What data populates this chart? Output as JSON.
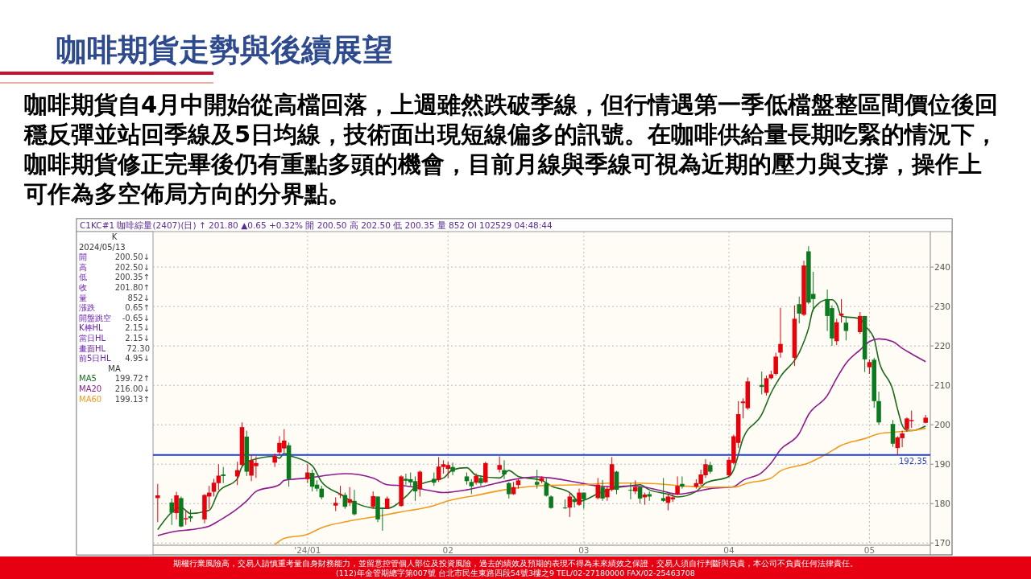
{
  "chart_data": {
    "type": "candlestick",
    "title": "咖啡期貨走勢與後續展望",
    "subtitle": "咖啡期貨自4月中開始從高檔回落，上週雖然跌破季線，但行情遇第一季低檔盤整區間價位後回穩反彈並站回季線及5日均線，技術面出現短線偏多的訊號。在咖啡供給量長期吃緊的情況下，咖啡期貨修正完畢後仍有重點多頭的機會，目前月線與季線可視為近期的壓力與支撐，操作上可作為多空佈局方向的分界點。",
    "annotations": [
      "C1KC#1   咖啡綜量(2407)(日)   ↑ 201.80   ▲0.65   +0.32%   開 200.50   高 202.50   低 200.35   量 852   OI 102529   04:48:44",
      "K",
      "2024/05/13",
      "開 200.50↓",
      "高 202.50↓",
      "低 200.35↑",
      "收 201.80↑",
      "量 852↓",
      "漲跌 0.65↑",
      "開盤跳空 -0.65↓",
      "K棒HL 2.15↓",
      "當日HL 2.15↓",
      "畫面HL 72.30",
      "前5日HL 4.95↓",
      "MA",
      "199.72↑",
      "216.00↓",
      "199.13↑",
      "期權行業風險高，交易人請慎重考量自身財務能力，並留意控管個人部位及投資風險，過去的績效及預期的表現不得為未來績效之保證，交易人須自行判斷與負責，本公司不負責任何法律責任。",
      "(112)年金管期總字第007號 台北市民生東路四段54號3樓之9 TEL/02-27180000 FAX/02-25463708"
    ],
    "x": [
      "2023-12-01",
      "2023-12-04",
      "2023-12-05",
      "2023-12-06",
      "2023-12-07",
      "2023-12-08",
      "2023-12-11",
      "2023-12-12",
      "2023-12-13",
      "2023-12-14",
      "2023-12-15",
      "2023-12-18",
      "2023-12-19",
      "2023-12-20",
      "2023-12-21",
      "2023-12-22",
      "2023-12-26",
      "2023-12-27",
      "2023-12-28",
      "2023-12-29",
      "2024-01-02",
      "2024-01-03",
      "2024-01-04",
      "2024-01-05",
      "2024-01-08",
      "2024-01-09",
      "2024-01-10",
      "2024-01-11",
      "2024-01-12",
      "2024-01-16",
      "2024-01-17",
      "2024-01-18",
      "2024-01-19",
      "2024-01-22",
      "2024-01-23",
      "2024-01-24",
      "2024-01-25",
      "2024-01-26",
      "2024-01-29",
      "2024-01-30",
      "2024-01-31",
      "2024-02-01",
      "2024-02-02",
      "2024-02-05",
      "2024-02-06",
      "2024-02-07",
      "2024-02-08",
      "2024-02-09",
      "2024-02-12",
      "2024-02-13",
      "2024-02-14",
      "2024-02-15",
      "2024-02-16",
      "2024-02-20",
      "2024-02-21",
      "2024-02-22",
      "2024-02-23",
      "2024-02-26",
      "2024-02-27",
      "2024-02-28",
      "2024-02-29",
      "2024-03-01",
      "2024-03-04",
      "2024-03-05",
      "2024-03-06",
      "2024-03-07",
      "2024-03-08",
      "2024-03-11",
      "2024-03-12",
      "2024-03-13",
      "2024-03-14",
      "2024-03-15",
      "2024-03-18",
      "2024-03-19",
      "2024-03-20",
      "2024-03-21",
      "2024-03-22",
      "2024-03-25",
      "2024-03-26",
      "2024-03-27",
      "2024-03-28",
      "2024-04-01",
      "2024-04-02",
      "2024-04-03",
      "2024-04-04",
      "2024-04-05",
      "2024-04-08",
      "2024-04-09",
      "2024-04-10",
      "2024-04-11",
      "2024-04-12",
      "2024-04-15",
      "2024-04-16",
      "2024-04-17",
      "2024-04-18",
      "2024-04-19",
      "2024-04-22",
      "2024-04-23",
      "2024-04-24",
      "2024-04-25",
      "2024-04-26",
      "2024-04-29",
      "2024-04-30",
      "2024-05-01",
      "2024-05-02",
      "2024-05-03",
      "2024-05-06",
      "2024-05-07",
      "2024-05-08",
      "2024-05-09",
      "2024-05-10",
      "2024-05-13"
    ],
    "ohlc": [
      [
        181.4,
        185.0,
        175.3,
        182.1
      ],
      [
        180.3,
        181.3,
        174.6,
        177.7
      ],
      [
        177.6,
        183.0,
        176.0,
        182.1
      ],
      [
        181.4,
        181.8,
        174.0,
        174.2
      ],
      [
        176.0,
        178.1,
        174.6,
        176.3
      ],
      [
        176.8,
        178.5,
        175.4,
        176.3
      ],
      [
        176.0,
        182.4,
        175.0,
        182.2
      ],
      [
        181.8,
        184.5,
        178.7,
        182.8
      ],
      [
        183.0,
        186.3,
        181.8,
        185.3
      ],
      [
        185.2,
        190.0,
        183.5,
        187.1
      ],
      [
        187.4,
        189.3,
        185.2,
        187.0
      ],
      [
        186.9,
        190.6,
        184.7,
        188.5
      ],
      [
        189.8,
        200.6,
        189.6,
        199.4
      ],
      [
        197.0,
        198.5,
        187.0,
        188.1
      ],
      [
        187.1,
        192.4,
        185.7,
        191.0
      ],
      [
        189.5,
        192.0,
        186.5,
        190.3
      ],
      [
        190.4,
        192.7,
        189.3,
        192.0
      ],
      [
        193.0,
        197.1,
        192.4,
        195.4
      ],
      [
        194.0,
        198.9,
        193.0,
        196.0
      ],
      [
        194.8,
        195.5,
        184.3,
        186.2
      ],
      [
        186.2,
        190.0,
        185.2,
        187.9
      ],
      [
        187.8,
        188.6,
        183.1,
        184.3
      ],
      [
        184.8,
        185.9,
        183.1,
        183.8
      ],
      [
        183.8,
        184.5,
        181.1,
        181.6
      ],
      [
        179.5,
        181.6,
        178.1,
        180.2
      ],
      [
        182.2,
        184.5,
        181.4,
        182.4
      ],
      [
        182.2,
        182.8,
        178.7,
        179.2
      ],
      [
        180.2,
        184.2,
        179.4,
        181.1
      ],
      [
        180.7,
        183.5,
        177.0,
        177.3
      ],
      [
        179.2,
        183.1,
        178.7,
        181.9
      ],
      [
        181.8,
        181.8,
        175.3,
        176.0
      ],
      [
        178.9,
        179.0,
        173.1,
        178.7
      ],
      [
        178.7,
        181.8,
        178.7,
        181.3
      ],
      [
        179.4,
        187.2,
        179.2,
        186.9
      ],
      [
        186.3,
        187.6,
        184.8,
        185.8
      ],
      [
        186.2,
        187.9,
        184.5,
        185.4
      ],
      [
        185.7,
        186.9,
        180.7,
        183.1
      ],
      [
        183.6,
        188.4,
        181.8,
        188.1
      ],
      [
        186.3,
        187.9,
        184.5,
        185.3
      ],
      [
        186.0,
        191.8,
        185.5,
        189.4
      ],
      [
        189.3,
        191.0,
        187.6,
        190.0
      ],
      [
        188.8,
        190.6,
        186.5,
        189.8
      ],
      [
        189.3,
        190.4,
        187.2,
        188.1
      ],
      [
        186.9,
        187.9,
        184.8,
        185.7
      ],
      [
        185.5,
        186.2,
        182.4,
        184.4
      ],
      [
        185.3,
        187.7,
        184.8,
        187.0
      ],
      [
        186.5,
        187.2,
        184.5,
        185.2
      ],
      [
        185.4,
        190.6,
        185.2,
        190.3
      ],
      [
        188.6,
        192.0,
        187.9,
        189.8
      ],
      [
        188.5,
        191.0,
        186.2,
        187.4
      ],
      [
        185.2,
        185.5,
        181.3,
        182.4
      ],
      [
        182.4,
        185.5,
        182.2,
        184.2
      ],
      [
        184.7,
        186.3,
        183.8,
        185.9
      ],
      [
        185.5,
        188.6,
        183.8,
        184.8
      ],
      [
        185.7,
        186.9,
        185.2,
        186.5
      ],
      [
        185.2,
        186.5,
        181.8,
        182.0
      ],
      [
        181.8,
        182.1,
        178.7,
        178.9
      ],
      [
        179.0,
        181.1,
        178.7,
        178.8
      ],
      [
        179.0,
        182.8,
        176.6,
        181.8
      ],
      [
        181.1,
        181.8,
        179.0,
        180.4
      ],
      [
        179.7,
        183.8,
        179.4,
        182.8
      ],
      [
        182.8,
        182.8,
        178.7,
        181.1
      ],
      [
        181.4,
        186.5,
        181.1,
        184.8
      ],
      [
        184.2,
        186.0,
        180.7,
        181.3
      ],
      [
        181.6,
        184.5,
        180.7,
        183.8
      ],
      [
        183.5,
        191.8,
        183.1,
        190.0
      ],
      [
        188.1,
        188.3,
        182.4,
        183.5
      ],
      [
        183.5,
        185.2,
        181.1,
        183.3
      ],
      [
        183.1,
        185.9,
        182.4,
        184.2
      ],
      [
        184.2,
        184.2,
        180.0,
        181.3
      ],
      [
        181.6,
        182.8,
        179.7,
        182.3
      ],
      [
        182.4,
        183.1,
        180.7,
        181.8
      ],
      [
        181.4,
        186.5,
        180.4,
        180.7
      ],
      [
        180.2,
        182.4,
        178.3,
        181.8
      ],
      [
        181.1,
        182.4,
        180.4,
        181.6
      ],
      [
        182.4,
        186.9,
        182.1,
        184.5
      ],
      [
        185.0,
        186.9,
        183.8,
        184.3
      ],
      [
        184.3,
        186.2,
        183.8,
        185.2
      ],
      [
        185.0,
        188.6,
        184.5,
        187.4
      ],
      [
        187.2,
        191.3,
        186.5,
        190.0
      ],
      [
        189.8,
        190.6,
        187.6,
        188.1
      ],
      [
        187.2,
        191.8,
        186.9,
        191.1
      ],
      [
        190.3,
        197.5,
        190.0,
        197.1
      ],
      [
        195.4,
        206.0,
        194.1,
        202.7
      ],
      [
        205.5,
        206.7,
        201.6,
        205.9
      ],
      [
        204.2,
        212.0,
        203.8,
        211.0
      ],
      [
        210.1,
        213.5,
        207.7,
        209.6
      ],
      [
        208.1,
        212.5,
        207.4,
        211.8
      ],
      [
        211.8,
        213.7,
        211.5,
        212.8
      ],
      [
        212.9,
        218.3,
        212.5,
        217.3
      ],
      [
        218.3,
        229.7,
        217.0,
        220.5
      ],
      [
        217.0,
        230.3,
        214.9,
        226.9
      ],
      [
        230.6,
        232.5,
        225.7,
        228.2
      ],
      [
        227.9,
        241.6,
        227.6,
        240.4
      ],
      [
        244.0,
        245.3,
        230.6,
        231.0
      ],
      [
        233.2,
        238.8,
        228.7,
        231.9
      ],
      [
        231.9,
        234.3,
        223.8,
        227.6
      ],
      [
        229.6,
        230.3,
        220.0,
        221.9
      ],
      [
        221.2,
        226.9,
        220.2,
        226.0
      ],
      [
        227.7,
        231.9,
        225.9,
        228.2
      ],
      [
        225.9,
        227.2,
        221.4,
        223.8
      ],
      [
        223.5,
        228.6,
        223.1,
        227.6
      ],
      [
        227.6,
        227.6,
        213.4,
        216.6
      ],
      [
        214.6,
        216.6,
        212.9,
        215.9
      ],
      [
        216.5,
        217.0,
        204.3,
        206.0
      ],
      [
        206.0,
        208.4,
        200.0,
        200.6
      ],
      [
        200.2,
        201.2,
        194.4,
        195.2
      ],
      [
        194.1,
        197.1,
        192.35,
        196.8
      ],
      [
        196.6,
        198.5,
        194.3,
        197.8
      ],
      [
        198.9,
        201.9,
        198.2,
        201.6
      ],
      [
        200.9,
        203.6,
        199.2,
        201.2
      ],
      [
        200.5,
        202.5,
        200.35,
        201.8
      ]
    ],
    "series": [
      {
        "name": "MA5",
        "type": "line",
        "color": "#1a6b1a",
        "x": [
          "2023-12-01",
          "2023-12-06",
          "2023-12-08",
          "2023-12-12",
          "2023-12-14",
          "2023-12-18",
          "2023-12-19",
          "2023-12-21",
          "2023-12-26",
          "2023-12-27",
          "2023-12-28",
          "2023-12-29",
          "2024-01-03",
          "2024-01-05",
          "2024-01-09",
          "2024-01-11",
          "2024-01-17",
          "2024-01-19",
          "2024-01-23",
          "2024-01-25",
          "2024-01-29",
          "2024-01-31",
          "2024-02-02",
          "2024-02-05",
          "2024-02-07",
          "2024-02-12",
          "2024-02-14",
          "2024-02-16",
          "2024-02-21",
          "2024-02-23",
          "2024-02-27",
          "2024-02-29",
          "2024-03-04",
          "2024-03-07",
          "2024-03-11",
          "2024-03-13",
          "2024-03-15",
          "2024-03-19",
          "2024-03-21",
          "2024-03-25",
          "2024-03-27",
          "2024-04-01",
          "2024-04-02",
          "2024-04-03",
          "2024-04-04",
          "2024-04-08",
          "2024-04-10",
          "2024-04-12",
          "2024-04-16",
          "2024-04-18",
          "2024-04-19",
          "2024-04-22",
          "2024-04-23",
          "2024-04-24",
          "2024-04-25",
          "2024-04-29",
          "2024-04-30",
          "2024-05-02",
          "2024-05-03",
          "2024-05-06",
          "2024-05-07",
          "2024-05-08",
          "2024-05-09",
          "2024-05-10",
          "2024-05-13"
        ],
        "values": [
          173.4,
          179.0,
          177.5,
          178.3,
          183.0,
          186.3,
          189.4,
          191.0,
          192.0,
          191.5,
          192.8,
          192.3,
          189.6,
          185.5,
          182.4,
          180.9,
          178.8,
          178.8,
          181.8,
          184.2,
          185.9,
          186.5,
          188.6,
          189.1,
          187.2,
          186.5,
          188.4,
          186.9,
          185.9,
          184.5,
          182.8,
          180.6,
          182.5,
          183.8,
          184.5,
          184.8,
          183.5,
          182.4,
          181.7,
          183.1,
          185.2,
          186.9,
          188.6,
          192.4,
          196.5,
          202.6,
          208.1,
          212.2,
          218.3,
          224.5,
          229.3,
          231.7,
          231.7,
          230.6,
          227.6,
          226.9,
          225.2,
          221.8,
          216.3,
          208.8,
          204.0,
          199.9,
          198.6,
          198.5,
          199.7
        ]
      },
      {
        "name": "MA20",
        "type": "line",
        "color": "#8e1a8e",
        "x": [
          "2023-12-01",
          "2023-12-05",
          "2023-12-08",
          "2023-12-12",
          "2023-12-14",
          "2023-12-18",
          "2023-12-20",
          "2023-12-22",
          "2023-12-27",
          "2023-12-28",
          "2024-01-02",
          "2024-01-05",
          "2024-01-10",
          "2024-01-16",
          "2024-01-19",
          "2024-01-23",
          "2024-01-29",
          "2024-01-31",
          "2024-02-05",
          "2024-02-09",
          "2024-02-14",
          "2024-02-20",
          "2024-02-23",
          "2024-02-28",
          "2024-03-04",
          "2024-03-07",
          "2024-03-11",
          "2024-03-14",
          "2024-03-18",
          "2024-03-21",
          "2024-03-25",
          "2024-03-28",
          "2024-04-02",
          "2024-04-04",
          "2024-04-08",
          "2024-04-10",
          "2024-04-12",
          "2024-04-16",
          "2024-04-18",
          "2024-04-22",
          "2024-04-24",
          "2024-04-26",
          "2024-04-29",
          "2024-05-01",
          "2024-05-03",
          "2024-05-06",
          "2024-05-08",
          "2024-05-10",
          "2024-05-13"
        ],
        "values": [
          171.9,
          173.0,
          173.4,
          174.3,
          175.6,
          178.7,
          180.7,
          183.1,
          184.8,
          185.9,
          186.5,
          187.0,
          187.6,
          186.5,
          184.8,
          184.5,
          183.1,
          182.8,
          183.5,
          184.5,
          185.9,
          186.8,
          186.5,
          185.5,
          184.5,
          184.3,
          184.5,
          184.2,
          183.1,
          182.4,
          183.1,
          183.8,
          184.3,
          185.9,
          187.9,
          190.3,
          193.7,
          197.8,
          202.6,
          207.4,
          211.8,
          215.6,
          219.0,
          221.1,
          221.8,
          221.1,
          219.4,
          218.0,
          216.0
        ]
      },
      {
        "name": "MA60",
        "type": "line",
        "color": "#f29a1f",
        "x": [
          "2023-12-26",
          "2023-12-28",
          "2024-01-02",
          "2024-01-05",
          "2024-01-11",
          "2024-01-17",
          "2024-01-22",
          "2024-01-29",
          "2024-02-01",
          "2024-02-07",
          "2024-02-13",
          "2024-02-20",
          "2024-02-26",
          "2024-03-01",
          "2024-03-07",
          "2024-03-13",
          "2024-03-19",
          "2024-03-22",
          "2024-03-27",
          "2024-04-02",
          "2024-04-05",
          "2024-04-10",
          "2024-04-12",
          "2024-04-18",
          "2024-04-22",
          "2024-04-25",
          "2024-04-30",
          "2024-05-03",
          "2024-05-07",
          "2024-05-10",
          "2024-05-13"
        ],
        "values": [
          169.6,
          171.2,
          172.2,
          173.9,
          175.6,
          176.8,
          177.9,
          179.5,
          180.7,
          182.1,
          183.5,
          184.5,
          184.7,
          184.8,
          185.2,
          185.2,
          184.8,
          184.5,
          184.2,
          184.2,
          185.2,
          186.5,
          188.3,
          190.3,
          192.7,
          194.8,
          196.5,
          197.7,
          198.2,
          198.5,
          199.1
        ]
      }
    ],
    "xlim": [
      "2023-11-30",
      "2024-05-14"
    ],
    "xticks": [
      {
        "value": "2024-01-02",
        "label": "'24/01"
      },
      {
        "value": "2024-02-01",
        "label": "02"
      },
      {
        "value": "2024-03-01",
        "label": "03"
      },
      {
        "value": "2024-04-01",
        "label": "04"
      },
      {
        "value": "2024-05-01",
        "label": "05"
      }
    ],
    "ylim": [
      167,
      249
    ],
    "yticks": [
      170,
      180,
      190,
      200,
      210,
      220,
      230,
      240
    ],
    "ref_lines": [
      {
        "axis": "y",
        "value": 192.35,
        "label": "192.35",
        "color": "#1f3fd0"
      }
    ],
    "grid": true,
    "legend": "left"
  }
}
